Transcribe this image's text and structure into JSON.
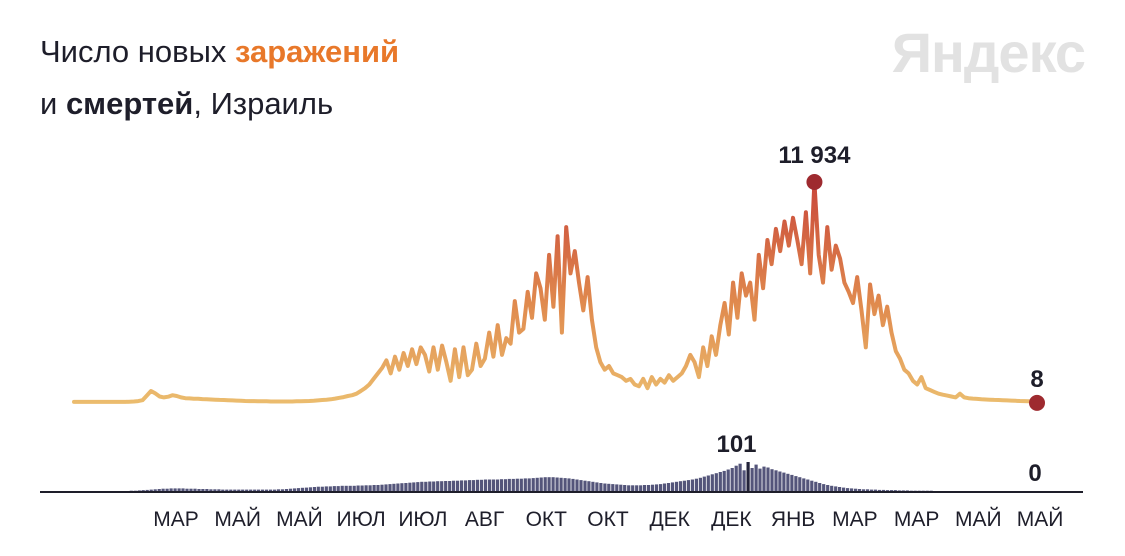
{
  "title": {
    "prefix": "Число новых ",
    "highlight": "заражений",
    "line2_prefix": "и ",
    "line2_bold": "смертей",
    "line2_suffix": ", Израиль"
  },
  "brand": "Яндекс",
  "colors": {
    "line_low": "#ebbc6e",
    "line_mid": "#e08a4e",
    "line_high": "#c9473a",
    "peak_dot": "#9e2a2f",
    "bars": "#54557a",
    "bars_peak": "#23233a",
    "axis": "#1e1e2a"
  },
  "chart_data": [
    {
      "type": "line",
      "series": [
        {
          "values": [
            60,
            60,
            60,
            60,
            60,
            60,
            60,
            60,
            60,
            60,
            60,
            60,
            60,
            70,
            80,
            100,
            150,
            400,
            650,
            520,
            350,
            300,
            340,
            420,
            380,
            300,
            260,
            250,
            230,
            230,
            210,
            200,
            190,
            180,
            170,
            160,
            150,
            140,
            130,
            120,
            110,
            100,
            100,
            90,
            90,
            90,
            80,
            80,
            80,
            80,
            80,
            80,
            90,
            90,
            100,
            110,
            120,
            140,
            160,
            180,
            200,
            240,
            280,
            320,
            380,
            420,
            500,
            650,
            800,
            1000,
            1300,
            1600,
            1900,
            2300,
            1600,
            2500,
            1800,
            2700,
            2000,
            2900,
            2100,
            3000,
            2600,
            1700,
            3000,
            1800,
            3100,
            2200,
            1200,
            2900,
            1400,
            3000,
            1500,
            1800,
            3200,
            2000,
            2400,
            3800,
            2500,
            4200,
            2600,
            3500,
            3200,
            5500,
            3800,
            4000,
            6000,
            4600,
            7000,
            6200,
            4500,
            8000,
            5200,
            9000,
            3800,
            9500,
            7000,
            8200,
            6500,
            5000,
            6800,
            4500,
            3000,
            2200,
            1800,
            2000,
            1600,
            1500,
            1400,
            1200,
            1300,
            1000,
            900,
            1300,
            800,
            1400,
            1000,
            1300,
            1100,
            1500,
            1200,
            1400,
            1600,
            2000,
            2600,
            2200,
            1400,
            3000,
            2000,
            3600,
            2600,
            4200,
            5400,
            3700,
            6500,
            4600,
            7000,
            5800,
            6500,
            4500,
            8000,
            6200,
            8800,
            7500,
            9400,
            8200,
            9800,
            8500,
            10000,
            8800,
            7500,
            10300,
            7000,
            11934,
            8000,
            6500,
            9500,
            7200,
            8500,
            7800,
            6500,
            6000,
            5400,
            6800,
            5000,
            3000,
            6400,
            4800,
            5800,
            4200,
            5200,
            3800,
            2800,
            2400,
            1800,
            1600,
            1200,
            1000,
            1400,
            800,
            700,
            600,
            500,
            450,
            400,
            350,
            300,
            500,
            300,
            260,
            240,
            220,
            200,
            190,
            180,
            170,
            160,
            150,
            140,
            130,
            120,
            110,
            100,
            90,
            80,
            8
          ]
        }
      ],
      "annotations": [
        {
          "label": "11 934",
          "value": 11934
        },
        {
          "label": "8",
          "value": 8
        }
      ]
    },
    {
      "type": "bar",
      "series": [
        {
          "values": [
            0,
            0,
            0,
            0,
            0,
            0,
            0,
            0,
            0,
            0,
            0,
            0,
            0,
            0,
            1,
            1,
            2,
            3,
            4,
            5,
            6,
            7,
            8,
            8,
            9,
            9,
            9,
            9,
            8,
            8,
            8,
            7,
            7,
            7,
            6,
            6,
            6,
            5,
            5,
            5,
            5,
            5,
            5,
            5,
            5,
            5,
            5,
            5,
            5,
            5,
            5,
            6,
            6,
            7,
            8,
            9,
            10,
            11,
            12,
            13,
            14,
            15,
            15,
            16,
            16,
            17,
            17,
            18,
            18,
            18,
            18,
            19,
            19,
            20,
            20,
            21,
            21,
            22,
            23,
            24,
            25,
            26,
            27,
            28,
            29,
            30,
            31,
            32,
            32,
            33,
            33,
            34,
            34,
            35,
            35,
            36,
            36,
            37,
            37,
            38,
            38,
            39,
            39,
            40,
            40,
            40,
            40,
            41,
            41,
            42,
            42,
            43,
            43,
            44,
            44,
            45,
            46,
            47,
            48,
            48,
            48,
            47,
            46,
            45,
            44,
            42,
            40,
            38,
            36,
            34,
            32,
            30,
            28,
            26,
            25,
            24,
            23,
            22,
            21,
            20,
            20,
            20,
            20,
            21,
            21,
            22,
            23,
            24,
            26,
            28,
            30,
            32,
            34,
            36,
            38,
            40,
            43,
            46,
            50,
            54,
            58,
            62,
            66,
            70,
            75,
            80,
            88,
            95,
            72,
            101,
            80,
            92,
            78,
            85,
            82,
            76,
            72,
            68,
            64,
            60,
            56,
            52,
            48,
            44,
            40,
            36,
            32,
            28,
            24,
            21,
            18,
            16,
            14,
            12,
            10,
            9,
            8,
            7,
            6,
            6,
            5,
            5,
            4,
            4,
            3,
            3,
            3,
            2,
            2,
            2,
            1,
            1,
            1,
            1,
            1,
            1,
            0,
            0,
            0,
            0,
            0,
            0,
            0,
            0,
            0,
            0,
            0,
            0,
            0,
            0,
            0,
            0,
            0,
            0,
            0,
            0,
            0,
            0,
            0,
            0,
            0,
            0
          ]
        }
      ],
      "annotations": [
        {
          "label": "101",
          "value": 101
        },
        {
          "label": "0",
          "value": 0
        }
      ]
    }
  ],
  "x_ticks": [
    "МАР",
    "МАЙ",
    "МАЙ",
    "ИЮЛ",
    "ИЮЛ",
    "АВГ",
    "ОКТ",
    "ОКТ",
    "ДЕК",
    "ДЕК",
    "ЯНВ",
    "МАР",
    "МАР",
    "МАЙ",
    "МАЙ"
  ]
}
